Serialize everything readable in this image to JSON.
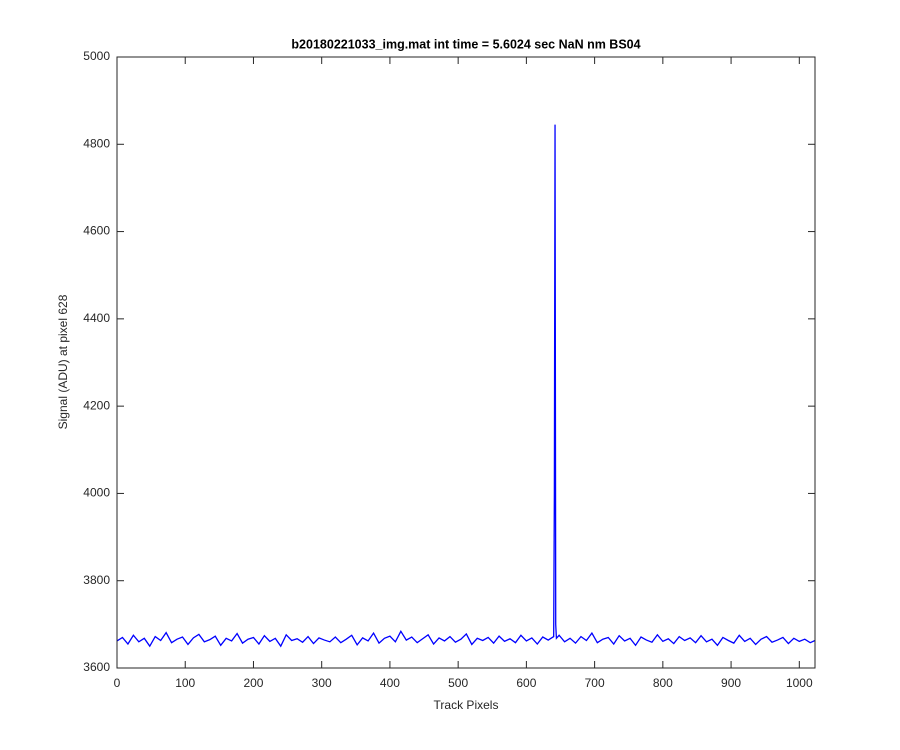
{
  "chart_data": {
    "type": "line",
    "title": "b20180221033_img.mat int time = 5.6024 sec  NaN nm BS04",
    "x_label": "Track Pixels",
    "y_label": "Signal (ADU) at pixel 628",
    "xlim": [
      0,
      1023
    ],
    "ylim": [
      3600,
      5000
    ],
    "xticks": [
      0,
      100,
      200,
      300,
      400,
      500,
      600,
      700,
      800,
      900,
      1000
    ],
    "yticks": [
      3600,
      3800,
      4000,
      4200,
      4400,
      4600,
      4800,
      5000
    ],
    "grid": false,
    "x": [
      0,
      8,
      16,
      24,
      32,
      40,
      48,
      56,
      64,
      72,
      80,
      88,
      96,
      104,
      112,
      120,
      128,
      136,
      144,
      152,
      160,
      168,
      176,
      184,
      192,
      200,
      208,
      216,
      224,
      232,
      240,
      248,
      256,
      264,
      272,
      280,
      288,
      296,
      304,
      312,
      320,
      328,
      336,
      344,
      352,
      360,
      368,
      376,
      384,
      392,
      400,
      408,
      416,
      424,
      432,
      440,
      448,
      456,
      464,
      472,
      480,
      488,
      496,
      504,
      512,
      520,
      528,
      536,
      544,
      552,
      560,
      568,
      576,
      584,
      592,
      600,
      608,
      616,
      624,
      632,
      636,
      640,
      641,
      642,
      643,
      644,
      648,
      656,
      664,
      672,
      680,
      688,
      696,
      704,
      712,
      720,
      728,
      736,
      744,
      752,
      760,
      768,
      776,
      784,
      792,
      800,
      808,
      816,
      824,
      832,
      840,
      848,
      856,
      864,
      872,
      880,
      888,
      896,
      904,
      912,
      920,
      928,
      936,
      944,
      952,
      960,
      968,
      976,
      984,
      992,
      1000,
      1008,
      1016,
      1023
    ],
    "series": [
      {
        "color": "#0000ff",
        "values": [
          3662,
          3670,
          3655,
          3675,
          3660,
          3668,
          3650,
          3672,
          3663,
          3681,
          3658,
          3666,
          3671,
          3654,
          3669,
          3677,
          3660,
          3665,
          3673,
          3652,
          3668,
          3662,
          3679,
          3657,
          3666,
          3670,
          3655,
          3674,
          3661,
          3668,
          3650,
          3676,
          3663,
          3667,
          3659,
          3672,
          3656,
          3669,
          3664,
          3660,
          3671,
          3658,
          3666,
          3675,
          3653,
          3669,
          3662,
          3680,
          3657,
          3668,
          3673,
          3660,
          3684,
          3664,
          3671,
          3658,
          3667,
          3676,
          3655,
          3669,
          3662,
          3672,
          3659,
          3666,
          3678,
          3654,
          3668,
          3663,
          3670,
          3657,
          3673,
          3661,
          3667,
          3658,
          3675,
          3662,
          3669,
          3655,
          3671,
          3664,
          3668,
          3672,
          4000,
          4845,
          3700,
          3668,
          3675,
          3660,
          3668,
          3657,
          3672,
          3663,
          3680,
          3658,
          3666,
          3670,
          3655,
          3674,
          3662,
          3668,
          3652,
          3671,
          3664,
          3659,
          3676,
          3661,
          3667,
          3656,
          3672,
          3663,
          3669,
          3658,
          3674,
          3660,
          3666,
          3652,
          3670,
          3663,
          3657,
          3675,
          3661,
          3668,
          3654,
          3666,
          3672,
          3659,
          3664,
          3670,
          3656,
          3668,
          3661,
          3666,
          3658,
          3663
        ]
      }
    ]
  }
}
